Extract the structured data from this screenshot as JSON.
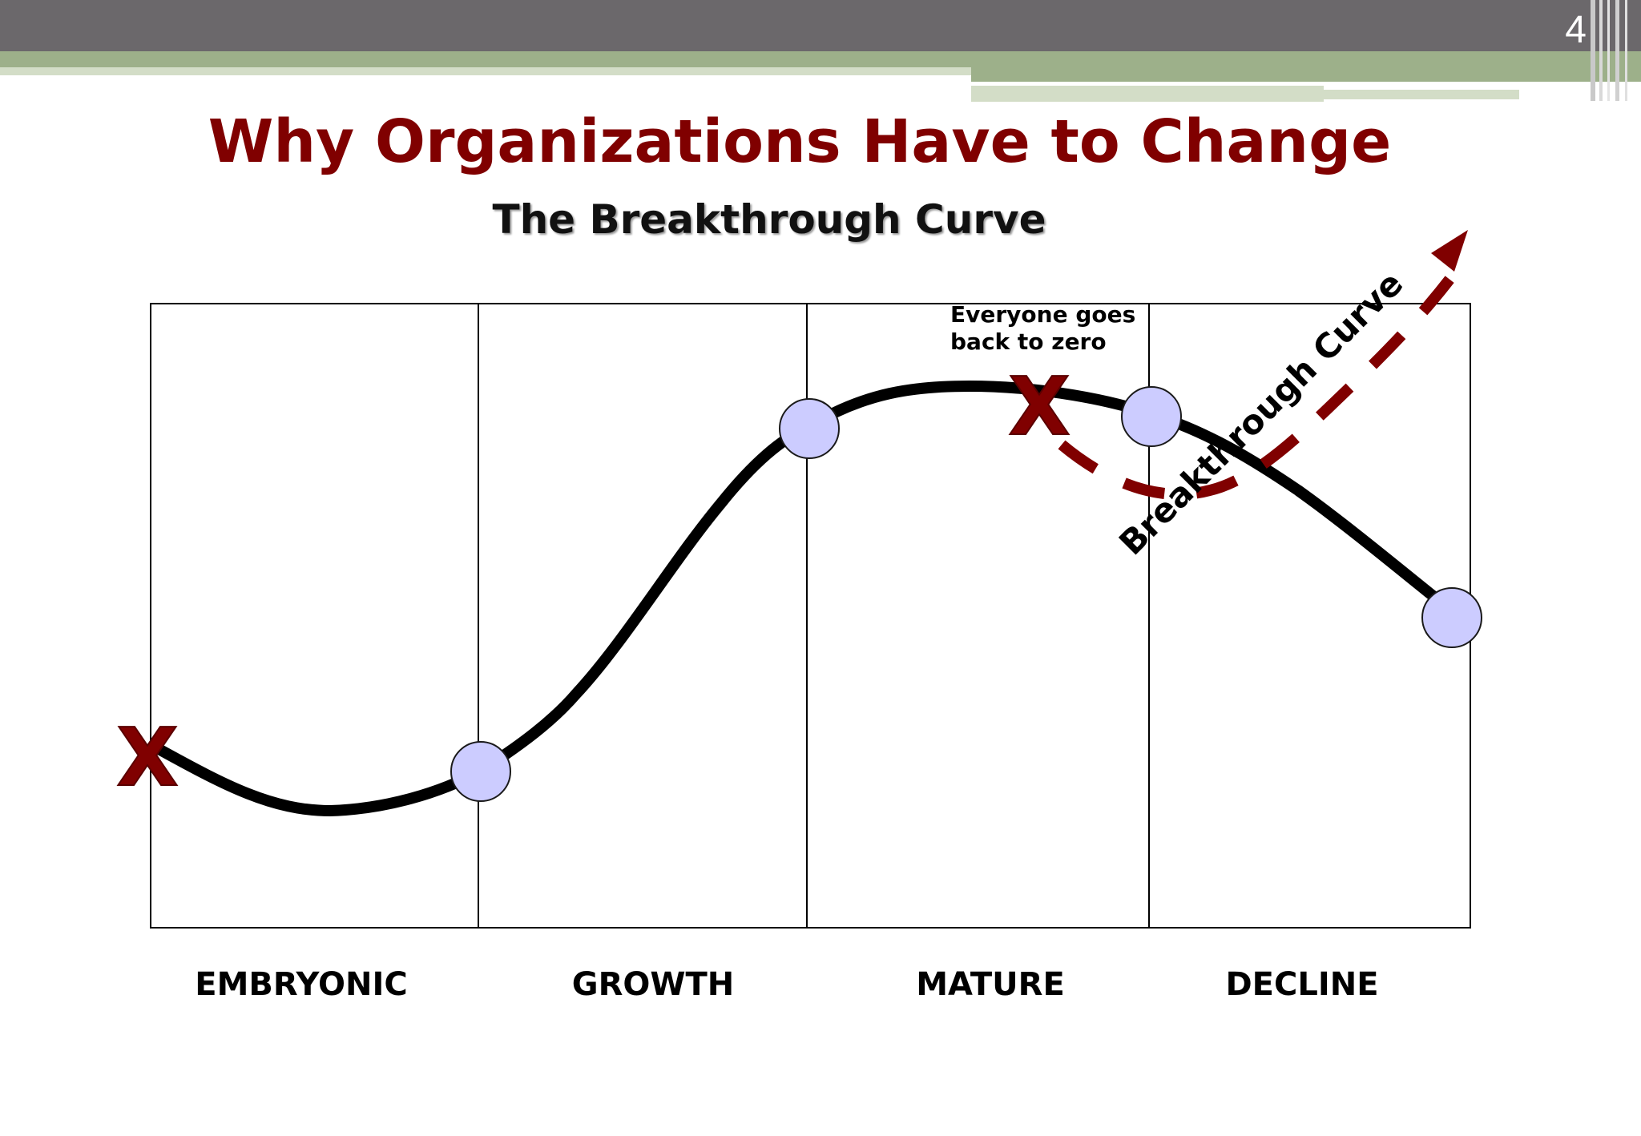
{
  "slide": {
    "number": "4",
    "title": "Why Organizations Have to Change",
    "subtitle": "The Breakthrough Curve"
  },
  "diagram": {
    "phases": [
      "EMBRYONIC",
      "GROWTH",
      "MATURE",
      "DECLINE"
    ],
    "annotation": {
      "line1": "Everyone goes",
      "line2": "back to zero"
    },
    "breakthrough_label": "Breakthrough Curve",
    "x_marker": "X",
    "colors": {
      "accent": "#800000",
      "node_fill": "#ccccff",
      "curve": "#000000",
      "banner_dark": "#6b686b",
      "banner_green": "#9db08a",
      "banner_light": "#d3ddc7"
    }
  }
}
